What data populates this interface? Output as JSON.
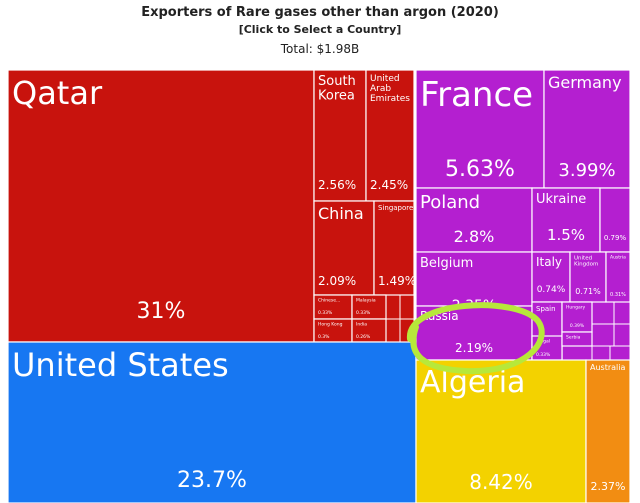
{
  "title": "Exporters of Rare gases other than argon (2020)",
  "subtitle": "[Click to Select a Country]",
  "total": "Total: $1.98B",
  "colors": {
    "asia": "#c8130d",
    "europe": "#b41fd0",
    "americas": "#1777f2",
    "africa": "#f3d200",
    "oceania": "#f28d12",
    "highlight": "#b7e83a",
    "border": "#ffffff"
  },
  "chart_data": {
    "type": "treemap",
    "title": "Exporters of Rare gases other than argon (2020)",
    "subtitle": "[Click to Select a Country]",
    "total": "Total: $1.98B",
    "tiles": [
      {
        "name": "Qatar",
        "value_label": "31%",
        "value": 31,
        "region": "asia"
      },
      {
        "name": "South Korea",
        "value_label": "2.56%",
        "value": 2.56,
        "region": "asia"
      },
      {
        "name": "United Arab Emirates",
        "value_label": "2.45%",
        "value": 2.45,
        "region": "asia"
      },
      {
        "name": "China",
        "value_label": "2.09%",
        "value": 2.09,
        "region": "asia"
      },
      {
        "name": "Singapore",
        "value_label": "1.49%",
        "value": 1.49,
        "region": "asia"
      },
      {
        "name": "Chinese...",
        "value_label": "0.33%",
        "value": 0.33,
        "region": "asia"
      },
      {
        "name": "Malaysia",
        "value_label": "0.33%",
        "value": 0.33,
        "region": "asia"
      },
      {
        "name": "Hong Kong",
        "value_label": "0.3%",
        "value": 0.3,
        "region": "asia"
      },
      {
        "name": "India",
        "value_label": "0.26%",
        "value": 0.26,
        "region": "asia"
      },
      {
        "name": "United States",
        "value_label": "23.7%",
        "value": 23.7,
        "region": "americas"
      },
      {
        "name": "France",
        "value_label": "5.63%",
        "value": 5.63,
        "region": "europe"
      },
      {
        "name": "Germany",
        "value_label": "3.99%",
        "value": 3.99,
        "region": "europe"
      },
      {
        "name": "Poland",
        "value_label": "2.8%",
        "value": 2.8,
        "region": "europe"
      },
      {
        "name": "Ukraine",
        "value_label": "1.5%",
        "value": 1.5,
        "region": "europe"
      },
      {
        "name": "",
        "value_label": "0.79%",
        "value": 0.79,
        "region": "europe"
      },
      {
        "name": "Belgium",
        "value_label": "2.35%",
        "value": 2.35,
        "region": "europe"
      },
      {
        "name": "Italy",
        "value_label": "0.74%",
        "value": 0.74,
        "region": "europe"
      },
      {
        "name": "United Kingdom",
        "value_label": "0.71%",
        "value": 0.71,
        "region": "europe"
      },
      {
        "name": "Austria",
        "value_label": "0.31%",
        "value": 0.31,
        "region": "europe"
      },
      {
        "name": "Russia",
        "value_label": "2.19%",
        "value": 2.19,
        "region": "europe"
      },
      {
        "name": "Spain",
        "value_label": "0.45%",
        "value": 0.45,
        "region": "europe"
      },
      {
        "name": "Hungary",
        "value_label": "0.39%",
        "value": 0.39,
        "region": "europe"
      },
      {
        "name": "...ugal",
        "value_label": "0.33%",
        "value": 0.33,
        "region": "europe"
      },
      {
        "name": "Serbia",
        "value_label": "",
        "value": null,
        "region": "europe"
      },
      {
        "name": "Algeria",
        "value_label": "8.42%",
        "value": 8.42,
        "region": "africa"
      },
      {
        "name": "Australia",
        "value_label": "2.37%",
        "value": 2.37,
        "region": "oceania"
      }
    ],
    "highlighted": "Russia"
  }
}
